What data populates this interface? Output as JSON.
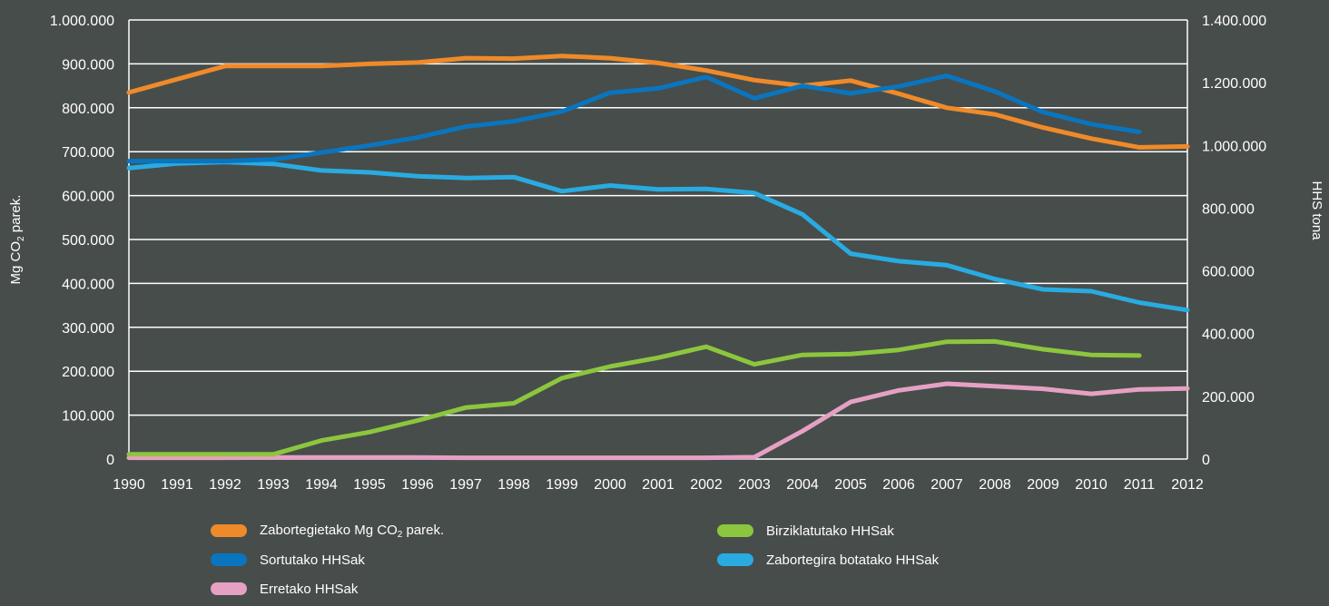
{
  "chart_data": {
    "type": "line",
    "x": [
      1990,
      1991,
      1992,
      1993,
      1994,
      1995,
      1996,
      1997,
      1998,
      1999,
      2000,
      2001,
      2002,
      2003,
      2004,
      2005,
      2006,
      2007,
      2008,
      2009,
      2010,
      2011,
      2012
    ],
    "x_labels": [
      "1990",
      "1991",
      "1992",
      "1993",
      "1994",
      "1995",
      "1996",
      "1997",
      "1998",
      "1999",
      "2000",
      "2001",
      "2002",
      "2003",
      "2004",
      "2005",
      "2006",
      "2007",
      "2008",
      "2009",
      "2010",
      "2011",
      "2012"
    ],
    "ylabel_left": {
      "prefix": "Mg CO",
      "sub": "2",
      "suffix": " parek."
    },
    "ylabel_right": "HHS tona",
    "ylim_left": [
      0,
      1000000
    ],
    "ylim_right": [
      0,
      1400000
    ],
    "yticks_left": [
      "0",
      "100.000",
      "200.000",
      "300.000",
      "400.000",
      "500.000",
      "600.000",
      "700.000",
      "800.000",
      "900.000",
      "1.000.000"
    ],
    "yticks_right": [
      "0",
      "200.000",
      "400.000",
      "600.000",
      "800.000",
      "1.000.000",
      "1.200.000",
      "1.400.000"
    ],
    "grid": true,
    "series": [
      {
        "id": "zabortegietako",
        "name": {
          "prefix": "Zabortegietako Mg CO",
          "sub": "2",
          "suffix": " parek."
        },
        "axis": "left",
        "color": "#ef8a2a",
        "values": [
          835000,
          865000,
          895000,
          895000,
          895000,
          900000,
          903000,
          913000,
          912000,
          918000,
          913000,
          902000,
          885000,
          863000,
          850000,
          862000,
          832000,
          800000,
          785000,
          755000,
          730000,
          710000,
          712000
        ]
      },
      {
        "id": "sortutako",
        "name": {
          "prefix": "Sortutako HHSak",
          "sub": "",
          "suffix": ""
        },
        "axis": "right",
        "color": "#0a75bf",
        "values": [
          950000,
          950000,
          950000,
          955000,
          977000,
          1000000,
          1025000,
          1060000,
          1077000,
          1108000,
          1168000,
          1182000,
          1218000,
          1150000,
          1190000,
          1166000,
          1188000,
          1222000,
          1172000,
          1106000,
          1068000,
          1043000,
          null
        ]
      },
      {
        "id": "zabortegira",
        "name": {
          "prefix": "Zabortegira botatako HHSak",
          "sub": "",
          "suffix": ""
        },
        "axis": "right",
        "color": "#29abe2",
        "values": [
          928000,
          942000,
          947000,
          941000,
          920000,
          914000,
          902000,
          896000,
          899000,
          854000,
          872000,
          860000,
          861000,
          848000,
          780000,
          655000,
          631000,
          618000,
          574000,
          541000,
          535000,
          499000,
          475000
        ]
      },
      {
        "id": "birziklatutako",
        "name": {
          "prefix": "Birziklatutako HHSak",
          "sub": "",
          "suffix": ""
        },
        "axis": "right",
        "color": "#8cc63f",
        "values": [
          15000,
          15000,
          15000,
          15000,
          59000,
          86000,
          123000,
          164000,
          178000,
          258000,
          295000,
          323000,
          358000,
          302000,
          332000,
          335000,
          348000,
          374000,
          375000,
          350000,
          332000,
          330000,
          null
        ]
      },
      {
        "id": "erretako",
        "name": {
          "prefix": "Erretako HHSak",
          "sub": "",
          "suffix": ""
        },
        "axis": "right",
        "color": "#e6a0c4",
        "values": [
          4000,
          4000,
          4000,
          5000,
          5000,
          5000,
          5000,
          4000,
          4000,
          4000,
          4000,
          4000,
          4000,
          6000,
          89000,
          182000,
          219000,
          240000,
          232000,
          224000,
          208000,
          222000,
          225000
        ]
      }
    ],
    "legend_order": [
      "zabortegietako",
      "birziklatutako",
      "sortutako",
      "zabortegira",
      "erretako"
    ],
    "legend_placement": "bottom"
  }
}
